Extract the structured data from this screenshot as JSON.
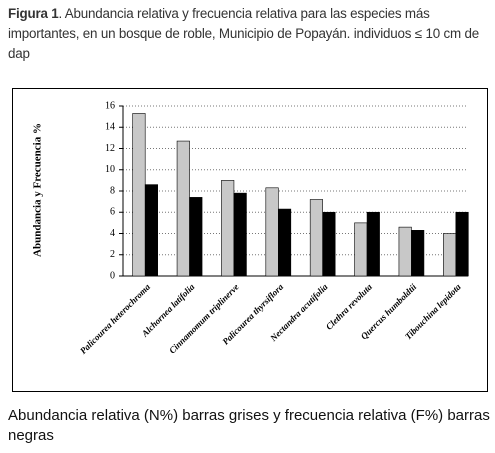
{
  "figure_label": "Figura 1",
  "caption": ". Abundancia relativa y frecuencia relativa para las especies más importantes, en un bosque de roble, Municipio de Popayán. individuos ≤ 10 cm de dap",
  "footnote": "Abundancia relativa (N%) barras grises y frecuencia relativa (F%) barras negras",
  "chart_data": {
    "type": "bar",
    "ylabel": "Abundancia y Frecuencia %",
    "categories": [
      "Palicourea heterochroma",
      "Alchornea latifolia",
      "Cinnamomum triplinerve",
      "Palicourea thyrsiflora",
      "Nectandra acutifolia",
      "Clethra revoluta",
      "Quercus humboldtii",
      "Tibouchina lepidota"
    ],
    "series": [
      {
        "color": "#c8c8c8",
        "values": [
          15.3,
          12.7,
          9.0,
          8.3,
          7.2,
          5.0,
          4.6,
          4.0
        ]
      },
      {
        "color": "#000000",
        "values": [
          8.6,
          7.4,
          7.8,
          6.3,
          6.0,
          6.0,
          4.3,
          6.0
        ]
      }
    ],
    "ylim": [
      0,
      16
    ],
    "yticks": [
      0,
      2,
      4,
      6,
      8,
      10,
      12,
      14,
      16
    ],
    "grid": true
  }
}
